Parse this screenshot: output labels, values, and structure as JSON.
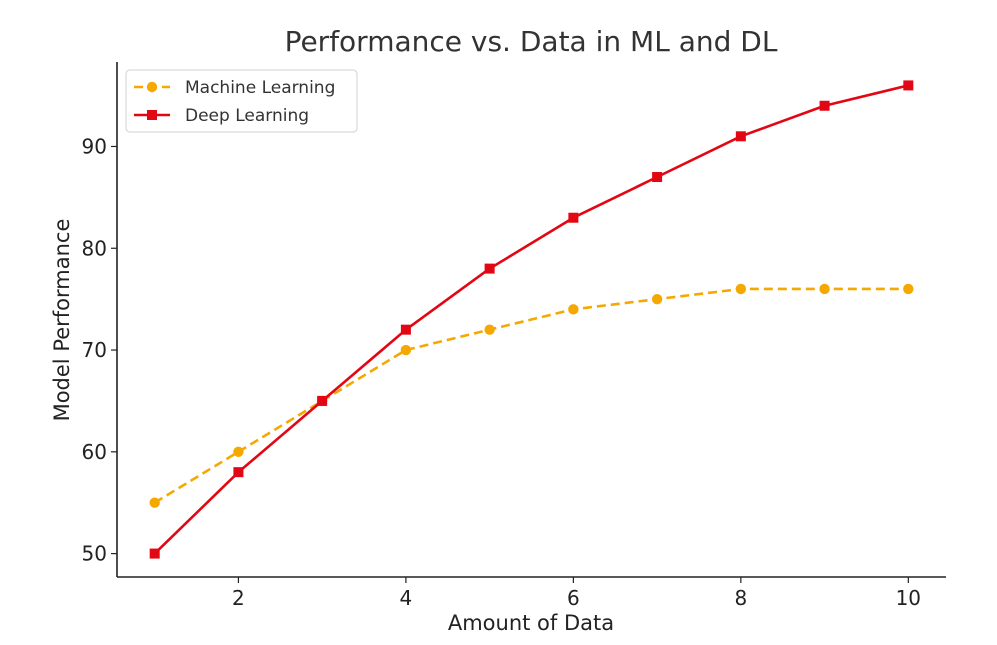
{
  "chart_data": {
    "type": "line",
    "title": "Performance vs. Data in ML and DL",
    "xlabel": "Amount of Data",
    "ylabel": "Model Performance",
    "x": [
      1,
      2,
      3,
      4,
      5,
      6,
      7,
      8,
      9,
      10
    ],
    "xlim": [
      0.55,
      10.45
    ],
    "ylim": [
      47.7,
      98.3
    ],
    "xticks": [
      2,
      4,
      6,
      8,
      10
    ],
    "xtick_labels": [
      "2",
      "4",
      "6",
      "8",
      "10"
    ],
    "yticks": [
      50,
      60,
      70,
      80,
      90
    ],
    "ytick_labels": [
      "50",
      "60",
      "70",
      "80",
      "90"
    ],
    "grid": false,
    "legend_position": "top-left",
    "series": [
      {
        "name": "Machine Learning",
        "values": [
          55,
          60,
          65,
          70,
          72,
          74,
          75,
          76,
          76,
          76
        ],
        "color": "#f5a800",
        "line_style": "dashed",
        "marker": "circle"
      },
      {
        "name": "Deep Learning",
        "values": [
          50,
          58,
          65,
          72,
          78,
          83,
          87,
          91,
          94,
          96
        ],
        "color": "#e30613",
        "line_style": "solid",
        "marker": "square"
      }
    ]
  }
}
